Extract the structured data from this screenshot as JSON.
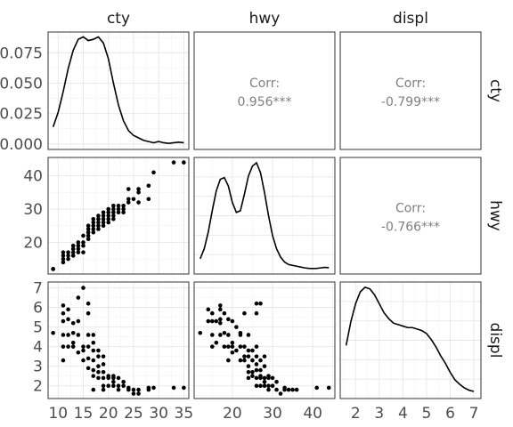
{
  "chart_data": {
    "type": "scatter",
    "variables": [
      "cty",
      "hwy",
      "displ"
    ],
    "axes": {
      "cty": {
        "lim": [
          8.0,
          36.0
        ],
        "ticks": [
          10,
          15,
          20,
          25,
          30,
          35
        ],
        "tick_labels": [
          "10",
          "15",
          "20",
          "25",
          "30",
          "35"
        ]
      },
      "hwy": {
        "lim": [
          10.5,
          45.5
        ],
        "ticks": [
          20,
          30,
          40
        ],
        "tick_labels": [
          "20",
          "30",
          "40"
        ]
      },
      "displ": {
        "lim": [
          1.35,
          7.3
        ],
        "ticks": [
          2,
          3,
          4,
          5,
          6,
          7
        ],
        "tick_labels": [
          "2",
          "3",
          "4",
          "5",
          "6",
          "7"
        ]
      }
    },
    "density_axis": {
      "lim": [
        -0.0045,
        0.092
      ],
      "ticks": [
        0.0,
        0.025,
        0.05,
        0.075
      ],
      "tick_labels": [
        "0.000",
        "0.025",
        "0.050",
        "0.075"
      ]
    },
    "densities": {
      "cty": {
        "x": [
          9,
          10,
          11,
          12,
          13,
          14,
          15,
          16,
          17,
          18,
          19,
          20,
          21,
          22,
          23,
          24,
          25,
          26,
          27,
          28,
          29,
          30,
          31,
          32,
          33,
          34,
          35
        ],
        "y": [
          0.014,
          0.026,
          0.043,
          0.062,
          0.077,
          0.086,
          0.088,
          0.085,
          0.086,
          0.088,
          0.083,
          0.07,
          0.05,
          0.032,
          0.019,
          0.011,
          0.007,
          0.005,
          0.003,
          0.002,
          0.001,
          0.002,
          0.001,
          0.0005,
          0.001,
          0.0015,
          0.001
        ]
      },
      "hwy": {
        "x": [
          12,
          13,
          14,
          15,
          16,
          17,
          18,
          19,
          20,
          21,
          22,
          23,
          24,
          25,
          26,
          27,
          28,
          29,
          30,
          31,
          32,
          33,
          34,
          35,
          36,
          37,
          38,
          39,
          40,
          41,
          42,
          43,
          44
        ],
        "y": [
          0.006,
          0.012,
          0.022,
          0.035,
          0.047,
          0.054,
          0.055,
          0.05,
          0.04,
          0.034,
          0.035,
          0.045,
          0.056,
          0.062,
          0.064,
          0.058,
          0.046,
          0.032,
          0.02,
          0.012,
          0.007,
          0.004,
          0.0025,
          0.002,
          0.0015,
          0.001,
          0.0005,
          0.0002,
          0.0001,
          0.0002,
          0.0005,
          0.0008,
          0.0006
        ]
      },
      "displ": {
        "x": [
          1.6,
          1.8,
          2.0,
          2.2,
          2.4,
          2.6,
          2.8,
          3.0,
          3.2,
          3.4,
          3.6,
          3.8,
          4.0,
          4.2,
          4.4,
          4.6,
          4.8,
          5.0,
          5.2,
          5.4,
          5.6,
          5.8,
          6.0,
          6.2,
          6.4,
          6.6,
          6.8,
          7.0
        ],
        "y": [
          0.16,
          0.24,
          0.3,
          0.34,
          0.355,
          0.35,
          0.33,
          0.3,
          0.27,
          0.25,
          0.235,
          0.23,
          0.225,
          0.22,
          0.22,
          0.215,
          0.21,
          0.2,
          0.18,
          0.155,
          0.125,
          0.1,
          0.07,
          0.045,
          0.03,
          0.018,
          0.01,
          0.006
        ]
      }
    },
    "correlations": [
      {
        "row": "cty",
        "col": "hwy",
        "label": "Corr:",
        "value": "0.956***"
      },
      {
        "row": "cty",
        "col": "displ",
        "label": "Corr:",
        "value": "-0.799***"
      },
      {
        "row": "hwy",
        "col": "displ",
        "label": "Corr:",
        "value": "-0.766***"
      }
    ],
    "points": {
      "cty_hwy": [
        [
          9,
          12
        ],
        [
          9,
          12
        ],
        [
          11,
          14
        ],
        [
          11,
          15
        ],
        [
          11,
          16
        ],
        [
          11,
          17
        ],
        [
          12,
          16
        ],
        [
          12,
          17
        ],
        [
          12,
          15
        ],
        [
          13,
          17
        ],
        [
          13,
          16
        ],
        [
          13,
          18
        ],
        [
          13,
          19
        ],
        [
          14,
          17
        ],
        [
          14,
          18
        ],
        [
          14,
          19
        ],
        [
          14,
          20
        ],
        [
          15,
          17
        ],
        [
          15,
          19
        ],
        [
          15,
          20
        ],
        [
          15,
          22
        ],
        [
          16,
          21
        ],
        [
          16,
          22
        ],
        [
          16,
          23
        ],
        [
          16,
          24
        ],
        [
          16,
          25
        ],
        [
          17,
          23
        ],
        [
          17,
          24
        ],
        [
          17,
          25
        ],
        [
          17,
          26
        ],
        [
          17,
          27
        ],
        [
          18,
          24
        ],
        [
          18,
          25
        ],
        [
          18,
          26
        ],
        [
          18,
          27
        ],
        [
          18,
          28
        ],
        [
          19,
          25
        ],
        [
          19,
          26
        ],
        [
          19,
          27
        ],
        [
          19,
          28
        ],
        [
          19,
          29
        ],
        [
          20,
          26
        ],
        [
          20,
          27
        ],
        [
          20,
          28
        ],
        [
          20,
          29
        ],
        [
          20,
          30
        ],
        [
          21,
          27
        ],
        [
          21,
          28
        ],
        [
          21,
          29
        ],
        [
          21,
          30
        ],
        [
          21,
          31
        ],
        [
          22,
          29
        ],
        [
          22,
          30
        ],
        [
          22,
          31
        ],
        [
          23,
          29
        ],
        [
          23,
          30
        ],
        [
          23,
          31
        ],
        [
          24,
          32
        ],
        [
          24,
          33
        ],
        [
          24,
          36
        ],
        [
          25,
          33
        ],
        [
          26,
          32
        ],
        [
          26,
          35
        ],
        [
          26,
          36
        ],
        [
          28,
          33
        ],
        [
          28,
          37
        ],
        [
          29,
          41
        ],
        [
          33,
          44
        ],
        [
          35,
          44
        ]
      ],
      "displ_cty": [
        [
          9,
          4.7
        ],
        [
          11,
          3.3
        ],
        [
          11,
          4.0
        ],
        [
          11,
          4.6
        ],
        [
          11,
          5.3
        ],
        [
          11,
          5.7
        ],
        [
          11,
          6.1
        ],
        [
          12,
          4.0
        ],
        [
          12,
          4.6
        ],
        [
          12,
          5.4
        ],
        [
          12,
          5.9
        ],
        [
          13,
          4.0
        ],
        [
          13,
          4.2
        ],
        [
          13,
          4.7
        ],
        [
          13,
          5.2
        ],
        [
          14,
          3.7
        ],
        [
          14,
          4.6
        ],
        [
          14,
          5.3
        ],
        [
          14,
          6.5
        ],
        [
          15,
          3.3
        ],
        [
          15,
          3.8
        ],
        [
          15,
          4.0
        ],
        [
          15,
          7.0
        ],
        [
          16,
          2.9
        ],
        [
          16,
          3.4
        ],
        [
          16,
          4.0
        ],
        [
          16,
          4.6
        ],
        [
          16,
          5.7
        ],
        [
          16,
          6.2
        ],
        [
          17,
          2.5
        ],
        [
          17,
          2.8
        ],
        [
          17,
          3.3
        ],
        [
          17,
          3.8
        ],
        [
          17,
          4.2
        ],
        [
          17,
          4.6
        ],
        [
          17,
          1.8
        ],
        [
          18,
          2.4
        ],
        [
          18,
          2.7
        ],
        [
          18,
          3.0
        ],
        [
          18,
          3.5
        ],
        [
          18,
          3.8
        ],
        [
          19,
          2.0
        ],
        [
          19,
          2.4
        ],
        [
          19,
          2.7
        ],
        [
          19,
          3.1
        ],
        [
          19,
          3.5
        ],
        [
          19,
          1.8
        ],
        [
          20,
          2.0
        ],
        [
          20,
          2.4
        ],
        [
          20,
          2.5
        ],
        [
          21,
          2.0
        ],
        [
          21,
          2.2
        ],
        [
          21,
          2.4
        ],
        [
          21,
          2.5
        ],
        [
          22,
          1.8
        ],
        [
          22,
          2.0
        ],
        [
          22,
          2.4
        ],
        [
          23,
          2.0
        ],
        [
          23,
          2.2
        ],
        [
          24,
          1.8
        ],
        [
          24,
          1.9
        ],
        [
          25,
          1.6
        ],
        [
          25,
          1.8
        ],
        [
          26,
          1.6
        ],
        [
          26,
          1.8
        ],
        [
          28,
          1.9
        ],
        [
          28,
          1.8
        ],
        [
          29,
          1.9
        ],
        [
          33,
          1.9
        ],
        [
          35,
          1.9
        ]
      ],
      "displ_hwy": [
        [
          12,
          4.7
        ],
        [
          14,
          5.3
        ],
        [
          14,
          5.9
        ],
        [
          15,
          4.0
        ],
        [
          15,
          4.6
        ],
        [
          15,
          5.3
        ],
        [
          15,
          5.7
        ],
        [
          16,
          4.2
        ],
        [
          16,
          5.3
        ],
        [
          17,
          4.6
        ],
        [
          17,
          5.2
        ],
        [
          17,
          5.4
        ],
        [
          17,
          5.9
        ],
        [
          17,
          6.1
        ],
        [
          18,
          4.0
        ],
        [
          18,
          4.7
        ],
        [
          18,
          5.7
        ],
        [
          19,
          4.0
        ],
        [
          19,
          4.6
        ],
        [
          19,
          5.4
        ],
        [
          19,
          3.3
        ],
        [
          20,
          4.0
        ],
        [
          20,
          4.2
        ],
        [
          20,
          5.3
        ],
        [
          20,
          3.7
        ],
        [
          21,
          3.8
        ],
        [
          21,
          5.0
        ],
        [
          22,
          3.3
        ],
        [
          22,
          4.0
        ],
        [
          22,
          4.6
        ],
        [
          22,
          4.7
        ],
        [
          23,
          3.3
        ],
        [
          23,
          3.5
        ],
        [
          23,
          4.0
        ],
        [
          23,
          5.7
        ],
        [
          24,
          2.4
        ],
        [
          24,
          2.7
        ],
        [
          24,
          3.0
        ],
        [
          24,
          3.5
        ],
        [
          24,
          3.8
        ],
        [
          24,
          4.6
        ],
        [
          25,
          2.5
        ],
        [
          25,
          2.7
        ],
        [
          25,
          3.3
        ],
        [
          25,
          3.8
        ],
        [
          26,
          2.0
        ],
        [
          26,
          2.4
        ],
        [
          26,
          2.8
        ],
        [
          26,
          3.1
        ],
        [
          26,
          3.5
        ],
        [
          26,
          4.0
        ],
        [
          26,
          5.7
        ],
        [
          26,
          6.2
        ],
        [
          27,
          2.0
        ],
        [
          27,
          2.4
        ],
        [
          27,
          2.5
        ],
        [
          27,
          2.8
        ],
        [
          27,
          3.3
        ],
        [
          27,
          6.2
        ],
        [
          28,
          2.0
        ],
        [
          28,
          2.2
        ],
        [
          28,
          2.4
        ],
        [
          28,
          3.0
        ],
        [
          28,
          3.5
        ],
        [
          29,
          1.8
        ],
        [
          29,
          2.0
        ],
        [
          29,
          2.4
        ],
        [
          29,
          2.5
        ],
        [
          30,
          2.0
        ],
        [
          30,
          2.4
        ],
        [
          31,
          1.8
        ],
        [
          31,
          2.2
        ],
        [
          32,
          1.6
        ],
        [
          33,
          1.8
        ],
        [
          33,
          1.9
        ],
        [
          34,
          1.8
        ],
        [
          35,
          1.8
        ],
        [
          36,
          1.8
        ],
        [
          41,
          1.9
        ],
        [
          44,
          1.9
        ]
      ]
    }
  }
}
